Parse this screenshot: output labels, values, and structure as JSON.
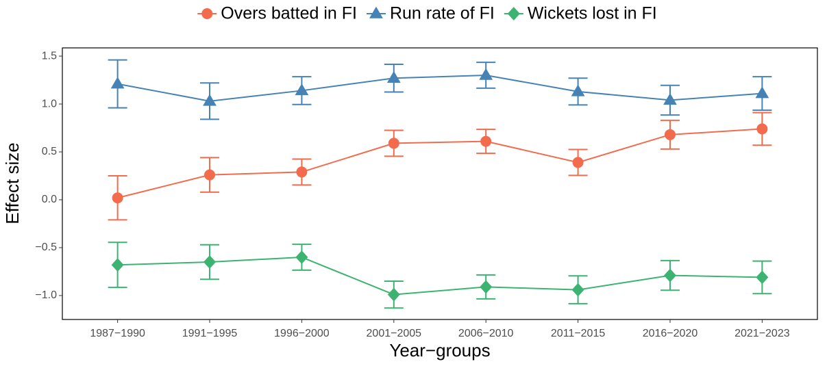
{
  "chart_data": {
    "type": "line",
    "xlabel": "Year−groups",
    "ylabel": "Effect size",
    "categories": [
      "1987−1990",
      "1991−1995",
      "1996−2000",
      "2001−2005",
      "2006−2010",
      "2011−2015",
      "2016−2020",
      "2021−2023"
    ],
    "ylim": [
      -1.25,
      1.586
    ],
    "yticks": [
      {
        "value": -1,
        "label": "−1.0"
      },
      {
        "value": -0.5,
        "label": "−0.5"
      },
      {
        "value": 0,
        "label": "0.0"
      },
      0.5,
      {
        "value": 1,
        "label": "1.0"
      },
      1.5
    ],
    "legend": "top",
    "series": [
      {
        "name": "Overs batted in FI",
        "color": "#f26b4c",
        "marker": "circle",
        "values": [
          0.02,
          0.26,
          0.29,
          0.59,
          0.61,
          0.39,
          0.68,
          0.74
        ],
        "errors": [
          0.23,
          0.18,
          0.135,
          0.135,
          0.125,
          0.135,
          0.15,
          0.17
        ]
      },
      {
        "name": "Run rate of FI",
        "color": "#4682b4",
        "marker": "triangle",
        "values": [
          1.21,
          1.03,
          1.14,
          1.27,
          1.3,
          1.13,
          1.04,
          1.11
        ],
        "errors": [
          0.25,
          0.19,
          0.145,
          0.145,
          0.135,
          0.14,
          0.155,
          0.175
        ]
      },
      {
        "name": "Wickets lost in FI",
        "color": "#3cb371",
        "marker": "diamond",
        "values": [
          -0.68,
          -0.65,
          -0.6,
          -0.99,
          -0.91,
          -0.94,
          -0.79,
          -0.81
        ],
        "errors": [
          0.235,
          0.18,
          0.135,
          0.14,
          0.125,
          0.145,
          0.155,
          0.17
        ]
      }
    ]
  }
}
